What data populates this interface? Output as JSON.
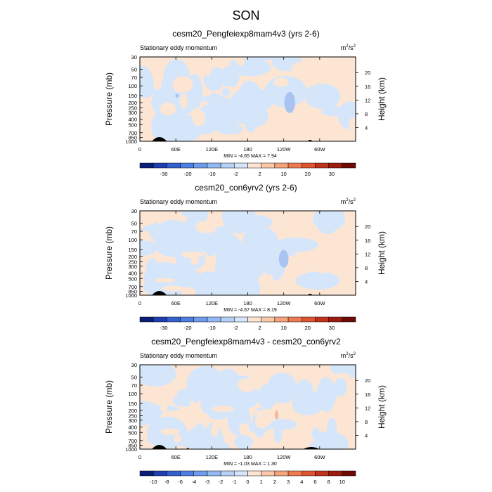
{
  "page_title": "SON",
  "chart_data": [
    {
      "type": "heatmap",
      "title": "cesm20_Pengfeiexp8mam4v3 (yrs 2-6)",
      "subtitle_left": "Stationary eddy momentum",
      "units_base": "m",
      "units_sup1": "2",
      "units_mid": "/s",
      "units_sup2": "2",
      "ylabel": "Pressure (mb)",
      "ylabel_right": "Height (km)",
      "pressure_ticks": [
        30,
        50,
        70,
        100,
        150,
        200,
        250,
        300,
        400,
        500,
        700,
        850,
        1000
      ],
      "pressure_tick_labels": [
        "30",
        "50",
        "70",
        "100",
        "150",
        "200",
        "250",
        "300",
        "400",
        "500",
        "700",
        "850",
        "1000"
      ],
      "height_ticks": [
        4,
        8,
        12,
        16,
        20
      ],
      "height_tick_labels": [
        "4",
        "8",
        "12",
        "16",
        "20"
      ],
      "lon_ticks": [
        0,
        60,
        120,
        180,
        240,
        300
      ],
      "lon_tick_labels": [
        "0",
        "60E",
        "120E",
        "180",
        "120W",
        "60W"
      ],
      "xlim": [
        0,
        360
      ],
      "ylim_mb": [
        1000,
        30
      ],
      "min_max_text": "MIN = -4.65  MAX =  7.94",
      "min": -4.65,
      "max": 7.94,
      "colorbar_labels": [
        "-30",
        "-20",
        "-10",
        "-2",
        "2",
        "10",
        "20",
        "30"
      ],
      "colorbar_colors": [
        "#0a1e78",
        "#1f3fb0",
        "#3460d0",
        "#4d7fe0",
        "#6f9cec",
        "#93b8f2",
        "#b6d0f6",
        "#d6e6fa",
        "#fde5d4",
        "#fbc8a8",
        "#f6a47c",
        "#ee7a50",
        "#de5430",
        "#c0341c",
        "#9c1c10",
        "#6e0b05"
      ],
      "blobs": [
        {
          "lon": 250,
          "mb": 200,
          "rlon": 9,
          "rmb": 1.55,
          "level": "neg2"
        },
        {
          "lon": 62,
          "mb": 150,
          "rlon": 3,
          "rmb": 1.08,
          "level": "neg2"
        }
      ]
    },
    {
      "type": "heatmap",
      "title": "cesm20_con6yrv2 (yrs 2-6)",
      "subtitle_left": "Stationary eddy momentum",
      "units_base": "m",
      "units_sup1": "2",
      "units_mid": "/s",
      "units_sup2": "2",
      "ylabel": "Pressure (mb)",
      "ylabel_right": "Height (km)",
      "pressure_ticks": [
        30,
        50,
        70,
        100,
        150,
        200,
        250,
        300,
        400,
        500,
        700,
        850,
        1000
      ],
      "pressure_tick_labels": [
        "30",
        "50",
        "70",
        "100",
        "150",
        "200",
        "250",
        "300",
        "400",
        "500",
        "700",
        "850",
        "1000"
      ],
      "height_ticks": [
        4,
        8,
        12,
        16,
        20
      ],
      "height_tick_labels": [
        "4",
        "8",
        "12",
        "16",
        "20"
      ],
      "lon_ticks": [
        0,
        60,
        120,
        180,
        240,
        300
      ],
      "lon_tick_labels": [
        "0",
        "60E",
        "120E",
        "180",
        "120W",
        "60W"
      ],
      "xlim": [
        0,
        360
      ],
      "ylim_mb": [
        1000,
        30
      ],
      "min_max_text": "MIN = -4.67  MAX =  8.19",
      "min": -4.67,
      "max": 8.19,
      "colorbar_labels": [
        "-30",
        "-20",
        "-10",
        "-2",
        "2",
        "10",
        "20",
        "30"
      ],
      "colorbar_colors": [
        "#0a1e78",
        "#1f3fb0",
        "#3460d0",
        "#4d7fe0",
        "#6f9cec",
        "#93b8f2",
        "#b6d0f6",
        "#d6e6fa",
        "#fde5d4",
        "#fbc8a8",
        "#f6a47c",
        "#ee7a50",
        "#de5430",
        "#c0341c",
        "#9c1c10",
        "#6e0b05"
      ],
      "blobs": [
        {
          "lon": 240,
          "mb": 220,
          "rlon": 8,
          "rmb": 1.45,
          "level": "neg2"
        }
      ]
    },
    {
      "type": "heatmap",
      "title": "cesm20_Pengfeiexp8mam4v3 - cesm20_con6yrv2",
      "subtitle_left": "Stationary eddy momentum",
      "units_base": "m",
      "units_sup1": "2",
      "units_mid": "/s",
      "units_sup2": "2",
      "ylabel": "Pressure (mb)",
      "ylabel_right": "Height (km)",
      "pressure_ticks": [
        30,
        50,
        70,
        100,
        150,
        200,
        250,
        300,
        400,
        500,
        700,
        850,
        1000
      ],
      "pressure_tick_labels": [
        "30",
        "50",
        "70",
        "100",
        "150",
        "200",
        "250",
        "300",
        "400",
        "500",
        "700",
        "850",
        "1000"
      ],
      "height_ticks": [
        4,
        8,
        12,
        16,
        20
      ],
      "height_tick_labels": [
        "4",
        "8",
        "12",
        "16",
        "20"
      ],
      "lon_ticks": [
        0,
        60,
        120,
        180,
        240,
        300
      ],
      "lon_tick_labels": [
        "0",
        "60E",
        "120E",
        "180",
        "120W",
        "60W"
      ],
      "xlim": [
        0,
        360
      ],
      "ylim_mb": [
        1000,
        30
      ],
      "min_max_text": "MIN = -1.03  MAX =  1.30",
      "min": -1.03,
      "max": 1.3,
      "colorbar_labels": [
        "-10",
        "-8",
        "-6",
        "-4",
        "-3",
        "-2",
        "-1",
        "0",
        "1",
        "2",
        "3",
        "4",
        "6",
        "8",
        "10"
      ],
      "colorbar_colors": [
        "#0a1e78",
        "#1f3fb0",
        "#3460d0",
        "#4d7fe0",
        "#6f9cec",
        "#93b8f2",
        "#b6d0f6",
        "#d6e6fa",
        "#fde5d4",
        "#fbc8a8",
        "#f6a47c",
        "#ee7a50",
        "#de5430",
        "#c0341c",
        "#9c1c10",
        "#6e0b05"
      ],
      "blobs": [
        {
          "lon": 228,
          "mb": 240,
          "rlon": 3,
          "rmb": 1.2,
          "level": "pos2"
        }
      ]
    }
  ]
}
